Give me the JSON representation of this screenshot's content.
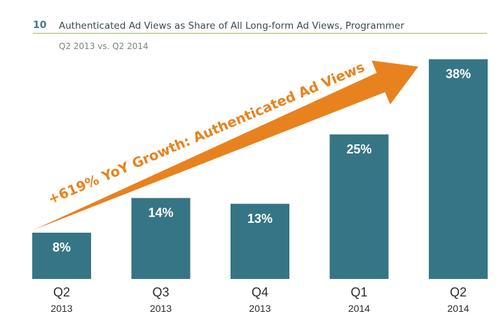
{
  "header": {
    "figure_number": "10",
    "title": "Authenticated Ad Views as Share of All Long-form Ad Views, Programmer",
    "subtitle": "Q2 2013 vs. Q2 2014"
  },
  "annotation": {
    "text": "+619% YoY Growth: Authenticated Ad Views"
  },
  "colors": {
    "bar": "#367585",
    "bar_label": "#ffffff",
    "arrow": "#e8821e",
    "arrow_text": "#e8821e",
    "axis_label": "#2c2c2c",
    "rule": "#9cc05e"
  },
  "chart_data": {
    "type": "bar",
    "title": "Authenticated Ad Views as Share of All Long-form Ad Views, Programmer",
    "subtitle": "Q2 2013 vs. Q2 2014",
    "categories": [
      {
        "quarter": "Q2",
        "year": "2013"
      },
      {
        "quarter": "Q3",
        "year": "2013"
      },
      {
        "quarter": "Q4",
        "year": "2013"
      },
      {
        "quarter": "Q1",
        "year": "2014"
      },
      {
        "quarter": "Q2",
        "year": "2014"
      }
    ],
    "values": [
      8,
      14,
      13,
      25,
      38
    ],
    "value_labels": [
      "8%",
      "14%",
      "13%",
      "25%",
      "38%"
    ],
    "unit": "%",
    "ylim": [
      0,
      40
    ],
    "xlabel": "",
    "ylabel": "",
    "grid": false,
    "legend": "none"
  }
}
